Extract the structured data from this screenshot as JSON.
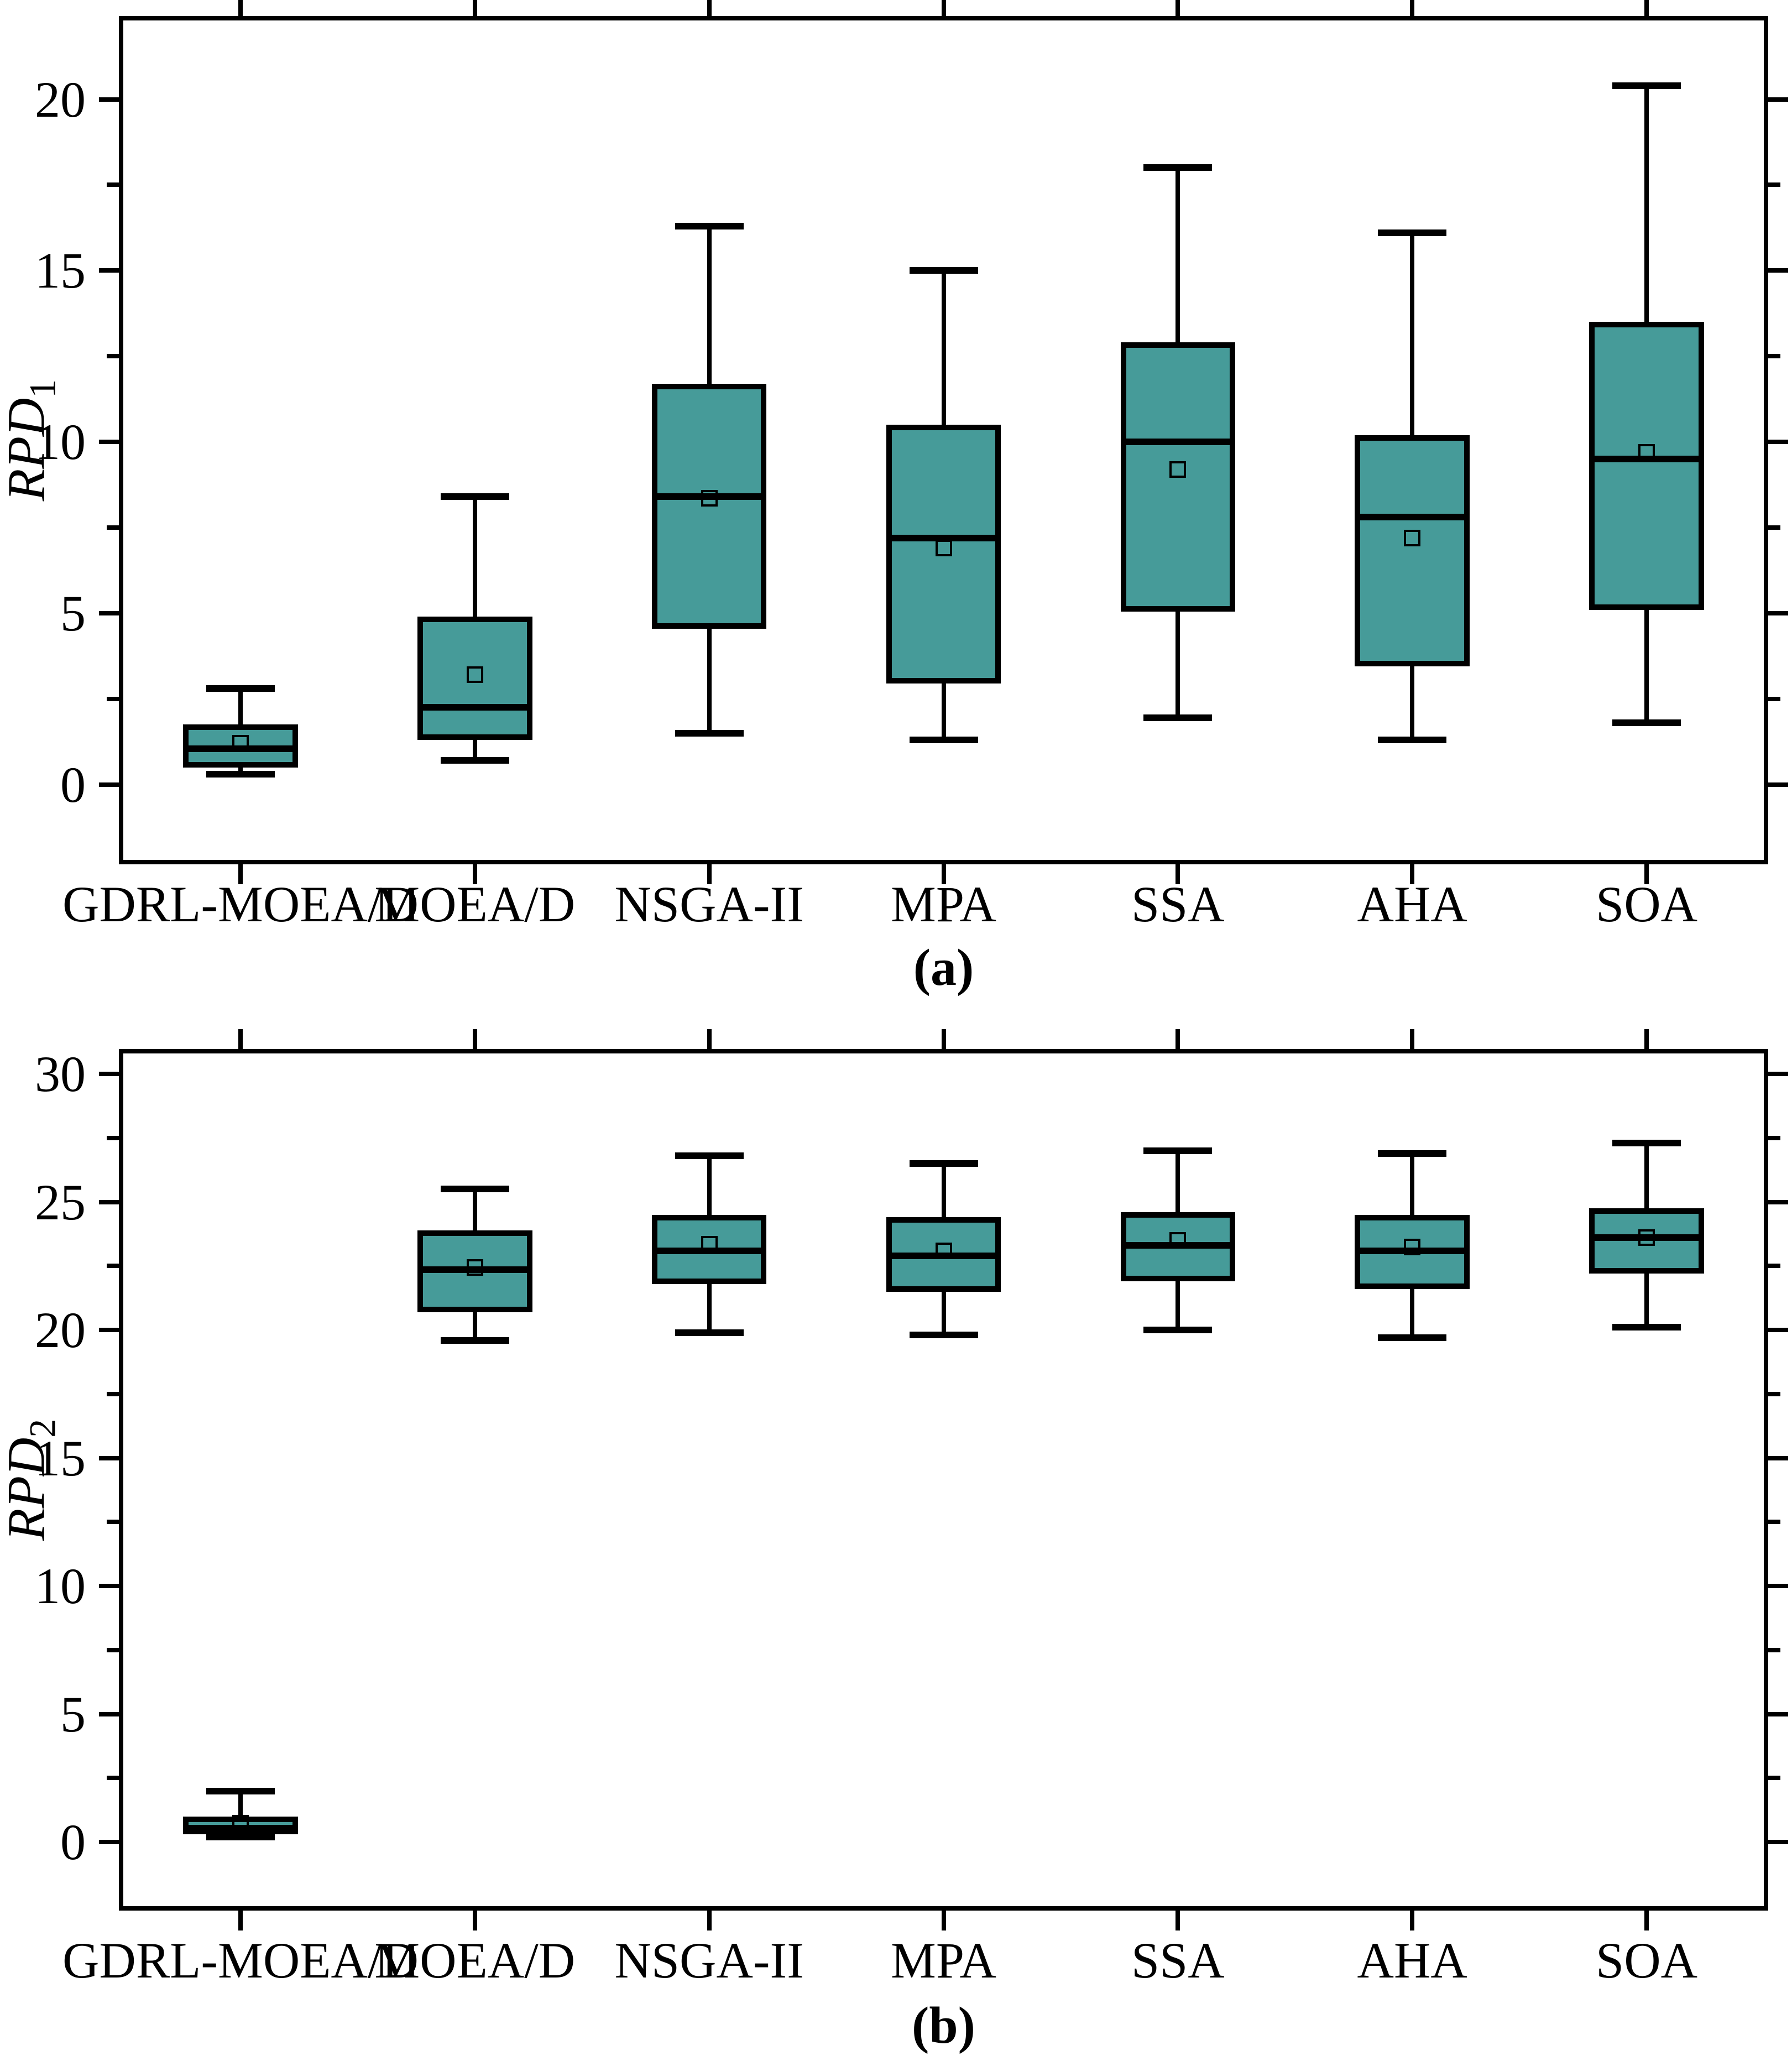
{
  "chart_data": [
    {
      "type": "box",
      "caption": "(a)",
      "ylabel_main": "RPD",
      "ylabel_sub": "1",
      "ylim": [
        -2.2,
        22.3
      ],
      "yticks_major": [
        0,
        5,
        10,
        15,
        20
      ],
      "yticks_minor": [
        2.5,
        7.5,
        12.5,
        17.5
      ],
      "grid": false,
      "legend": null,
      "box_fill": "#469B99",
      "line_color": "#000000",
      "categories": [
        "GDRL-MOEA/D",
        "MOEA/D",
        "NSGA-II",
        "MPA",
        "SSA",
        "AHA",
        "SOA"
      ],
      "series": [
        {
          "name": "GDRL-MOEA/D",
          "min": 0.3,
          "q1": 0.5,
          "median": 1.05,
          "mean": 1.2,
          "q3": 1.75,
          "max": 2.8
        },
        {
          "name": "MOEA/D",
          "min": 0.7,
          "q1": 1.3,
          "median": 2.25,
          "mean": 3.2,
          "q3": 4.9,
          "max": 8.4
        },
        {
          "name": "NSGA-II",
          "min": 1.5,
          "q1": 4.55,
          "median": 8.4,
          "mean": 8.35,
          "q3": 11.7,
          "max": 16.3
        },
        {
          "name": "MPA",
          "min": 1.3,
          "q1": 2.95,
          "median": 7.2,
          "mean": 6.9,
          "q3": 10.5,
          "max": 15.0
        },
        {
          "name": "SSA",
          "min": 1.95,
          "q1": 5.05,
          "median": 10.0,
          "mean": 9.2,
          "q3": 12.9,
          "max": 18.0
        },
        {
          "name": "AHA",
          "min": 1.3,
          "q1": 3.45,
          "median": 7.8,
          "mean": 7.2,
          "q3": 10.2,
          "max": 16.1
        },
        {
          "name": "SOA",
          "min": 1.8,
          "q1": 5.1,
          "median": 9.5,
          "mean": 9.7,
          "q3": 13.5,
          "max": 20.4
        }
      ]
    },
    {
      "type": "box",
      "caption": "(b)",
      "ylabel_main": "RPD",
      "ylabel_sub": "2",
      "ylim": [
        -2.5,
        30.8
      ],
      "yticks_major": [
        0,
        5,
        10,
        15,
        20,
        25,
        30
      ],
      "yticks_minor": [
        2.5,
        7.5,
        12.5,
        17.5,
        22.5,
        27.5
      ],
      "grid": false,
      "legend": null,
      "box_fill": "#469B99",
      "line_color": "#000000",
      "categories": [
        "GDRL-MOEA/D",
        "MOEA/D",
        "NSGA-II",
        "MPA",
        "SSA",
        "AHA",
        "SOA"
      ],
      "series": [
        {
          "name": "GDRL-MOEA/D",
          "min": 0.2,
          "q1": 0.3,
          "median": 0.55,
          "mean": 0.75,
          "q3": 1.0,
          "max": 2.0
        },
        {
          "name": "MOEA/D",
          "min": 19.6,
          "q1": 20.7,
          "median": 22.35,
          "mean": 22.45,
          "q3": 23.9,
          "max": 25.5
        },
        {
          "name": "NSGA-II",
          "min": 19.9,
          "q1": 21.8,
          "median": 23.1,
          "mean": 23.35,
          "q3": 24.5,
          "max": 26.8
        },
        {
          "name": "MPA",
          "min": 19.8,
          "q1": 21.5,
          "median": 22.9,
          "mean": 23.1,
          "q3": 24.4,
          "max": 26.5
        },
        {
          "name": "SSA",
          "min": 20.0,
          "q1": 21.9,
          "median": 23.3,
          "mean": 23.5,
          "q3": 24.6,
          "max": 27.0
        },
        {
          "name": "AHA",
          "min": 19.7,
          "q1": 21.6,
          "median": 23.1,
          "mean": 23.25,
          "q3": 24.5,
          "max": 26.9
        },
        {
          "name": "SOA",
          "min": 20.1,
          "q1": 22.2,
          "median": 23.6,
          "mean": 23.6,
          "q3": 24.75,
          "max": 27.3
        }
      ]
    }
  ]
}
